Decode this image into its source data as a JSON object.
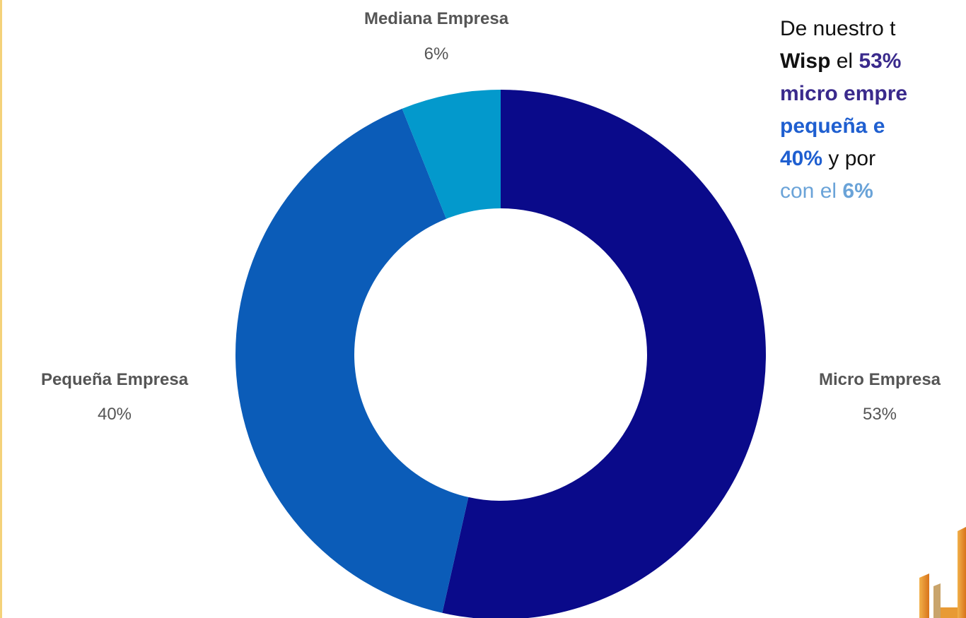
{
  "chart_data": {
    "type": "pie",
    "style": "donut",
    "slices": [
      {
        "label": "Micro Empresa",
        "value_label": "53%",
        "value": 53,
        "color": "#0a0a8a"
      },
      {
        "label": "Pequeña Empresa",
        "value_label": "40%",
        "value": 40,
        "color": "#0b5cb8"
      },
      {
        "label": "Mediana Empresa",
        "value_label": "6%",
        "value": 6,
        "color": "#0399cc"
      }
    ],
    "legend": "none"
  },
  "text": {
    "line1": "De nuestro t",
    "line2_a": "Wisp",
    "line2_b": " el ",
    "line2_c": "53%",
    "line3": "micro empre",
    "line4": "pequeña e",
    "line5_a": "40%",
    "line5_b": " y por ",
    "line6_a": "con el ",
    "line6_b": "6%"
  },
  "colors": {
    "label_text": "#555555",
    "border": "#f4d27a",
    "logo": "#e08a1a"
  },
  "icons": {
    "logo": "orange-logo-icon"
  }
}
